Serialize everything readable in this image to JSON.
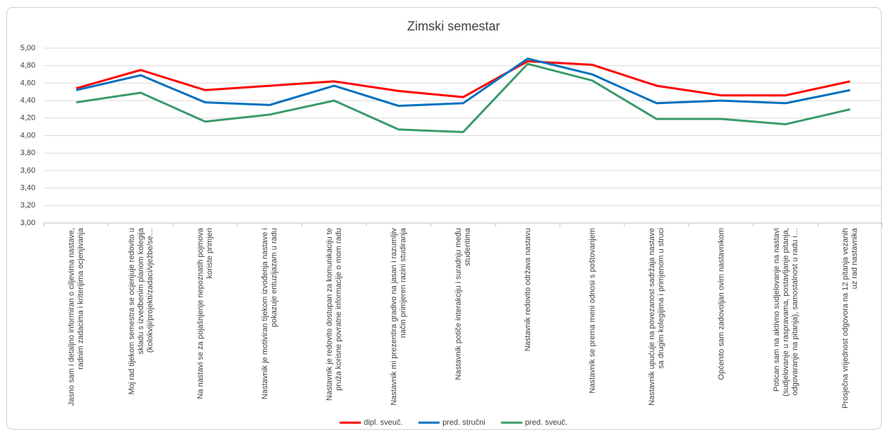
{
  "chart_data": {
    "type": "line",
    "title": "Zimski semestar",
    "categories": [
      "Jasno sam i detaljno informiran o ciljevima nastave, radnim zadacima i kriterijima ocjenjivanja",
      "Moj rad tijekom semestra se ocjenjuje redovito u skladu s izvedbenim planom kolegija (kolokviji/projekti/zadaci/vježbe/se…",
      "Na nastavi se za pojašnjenje nepoznatih pojmova koriste primjeri",
      "Nastavnik je motiviran tijekom izvođenja nastave i pokazuje entuzijazam u radu",
      "Nastavnik je redovito dostupan za komunikaciju te pruža korisne povratne informacije o mom radu",
      "Nastavnik mi prezentira gradivo na jasan i razumljiv način primjeren razini studiranja",
      "Nastavnik potiče interakciju i suradnju među studentima",
      "Nastavnik redovito održava nastavu",
      "Nastavnik se prema meni odnosi s poštovanjem",
      "Nastavnik upućuje na povezanost sadržaja nastave sa drugim kolegijima i primjenom u struci",
      "Općenito sam zadovoljan ovim nastavnikom",
      "Potican sam na aktivno sudjelovanje na nastavi (sudjelovanje u raspravama, postavljanje pitanja, odgovaranje na pitanja), samostalnost u radu i…",
      "Prosječna vrijednost odgovora na 12 pitanja vezanih uz rad nastavnika"
    ],
    "series": [
      {
        "name": "dipl. sveuč.",
        "color": "#ff0000",
        "values": [
          4.54,
          4.75,
          4.52,
          4.57,
          4.62,
          4.51,
          4.44,
          4.85,
          4.81,
          4.57,
          4.46,
          4.46,
          4.62
        ]
      },
      {
        "name": "pred. stručni",
        "color": "#0070c0",
        "values": [
          4.52,
          4.69,
          4.38,
          4.35,
          4.57,
          4.34,
          4.37,
          4.88,
          4.7,
          4.37,
          4.4,
          4.37,
          4.52
        ]
      },
      {
        "name": "pred. sveuč.",
        "color": "#3a9b6a",
        "values": [
          4.38,
          4.49,
          4.16,
          4.24,
          4.4,
          4.07,
          4.04,
          4.82,
          4.63,
          4.19,
          4.19,
          4.13,
          4.3
        ]
      }
    ],
    "ylim": [
      3.0,
      5.0
    ],
    "yticks": [
      {
        "value": 3.0,
        "label": "3,00"
      },
      {
        "value": 3.2,
        "label": "3,20"
      },
      {
        "value": 3.4,
        "label": "3,40"
      },
      {
        "value": 3.6,
        "label": "3,60"
      },
      {
        "value": 3.8,
        "label": "3,80"
      },
      {
        "value": 4.0,
        "label": "4,00"
      },
      {
        "value": 4.2,
        "label": "4,20"
      },
      {
        "value": 4.4,
        "label": "4,40"
      },
      {
        "value": 4.6,
        "label": "4,60"
      },
      {
        "value": 4.8,
        "label": "4,80"
      },
      {
        "value": 5.0,
        "label": "5,00"
      }
    ],
    "grid": true,
    "legend": "bottom"
  }
}
